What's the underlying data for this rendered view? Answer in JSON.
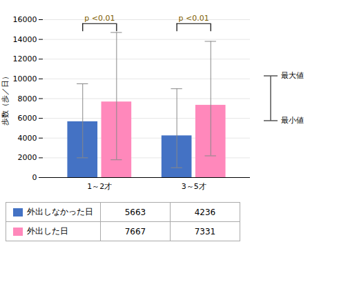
{
  "chart_data": {
    "type": "bar",
    "categories": [
      "1～2才",
      "3～5才"
    ],
    "series": [
      {
        "name": "外出しなかった日",
        "color": "#4472C4",
        "values": [
          5663,
          4236
        ],
        "error_min": [
          2000,
          1000
        ],
        "error_max": [
          9500,
          9000
        ]
      },
      {
        "name": "外出した日",
        "color": "#FF88BB",
        "values": [
          7667,
          7331
        ],
        "error_min": [
          1800,
          2200
        ],
        "error_max": [
          14700,
          13800
        ]
      }
    ],
    "ylabel": "歩数（歩／日）",
    "ylim": [
      0,
      16000
    ],
    "yticks": [
      0,
      2000,
      4000,
      6000,
      8000,
      10000,
      12000,
      14000,
      16000
    ],
    "grid": true,
    "legend": "bottom",
    "annotations": [
      {
        "text": "p <0.01",
        "category": "1～2才"
      },
      {
        "text": "p <0.01",
        "category": "3～5才"
      }
    ],
    "max_label": "最大値",
    "min_label": "最小値"
  }
}
